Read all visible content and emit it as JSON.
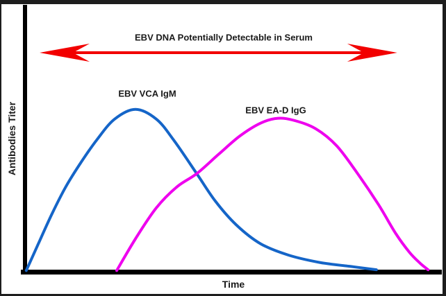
{
  "figure": {
    "background": "#ffffff",
    "frame_color": "#1d1d1d"
  },
  "chart_data": {
    "type": "line",
    "title": "",
    "xlabel": "Time",
    "ylabel": "Antibodies Titer",
    "xlim": [
      0,
      100
    ],
    "ylim": [
      0,
      100
    ],
    "grid": false,
    "axes_style": "thick black L-shaped axes, no tick marks, no tick labels (qualitative chart)",
    "legend_position": "inline labels above each curve peak",
    "axis_color": "#000000",
    "text_color": "#1a1a1a",
    "series": [
      {
        "name": "EBV VCA IgM",
        "color": "#1565c8",
        "points": [
          [
            0.3,
            0.5
          ],
          [
            3.2,
            17
          ],
          [
            6.5,
            35.5
          ],
          [
            9.8,
            52
          ],
          [
            13.2,
            66
          ],
          [
            17.3,
            81
          ],
          [
            21.5,
            93.5
          ],
          [
            26.5,
            99.5
          ],
          [
            31.5,
            93.5
          ],
          [
            35.7,
            80.5
          ],
          [
            41.2,
            60
          ],
          [
            45.7,
            43
          ],
          [
            50.7,
            28.5
          ],
          [
            56.5,
            17
          ],
          [
            63.2,
            10
          ],
          [
            70.7,
            5.5
          ],
          [
            78.2,
            3
          ],
          [
            84.3,
            1
          ]
        ]
      },
      {
        "name": "EBV EA-D IgG",
        "color": "#ee00ee",
        "points": [
          [
            22,
            0.5
          ],
          [
            26.5,
            20
          ],
          [
            31.5,
            39
          ],
          [
            36.5,
            52
          ],
          [
            41.2,
            60
          ],
          [
            46.5,
            72
          ],
          [
            51.5,
            83
          ],
          [
            56.5,
            91
          ],
          [
            60.7,
            94
          ],
          [
            64.8,
            92.5
          ],
          [
            69.8,
            87.5
          ],
          [
            74.8,
            77
          ],
          [
            79.8,
            60
          ],
          [
            84.8,
            41
          ],
          [
            89,
            23
          ],
          [
            92.3,
            11.5
          ],
          [
            94.8,
            5
          ],
          [
            96.7,
            1
          ]
        ]
      }
    ],
    "annotations": [
      {
        "type": "double-headed-arrow",
        "label": "EBV DNA Potentially Detectable in Serum",
        "x_start": 3.5,
        "x_end": 89.3,
        "color": "#f20000"
      }
    ]
  }
}
